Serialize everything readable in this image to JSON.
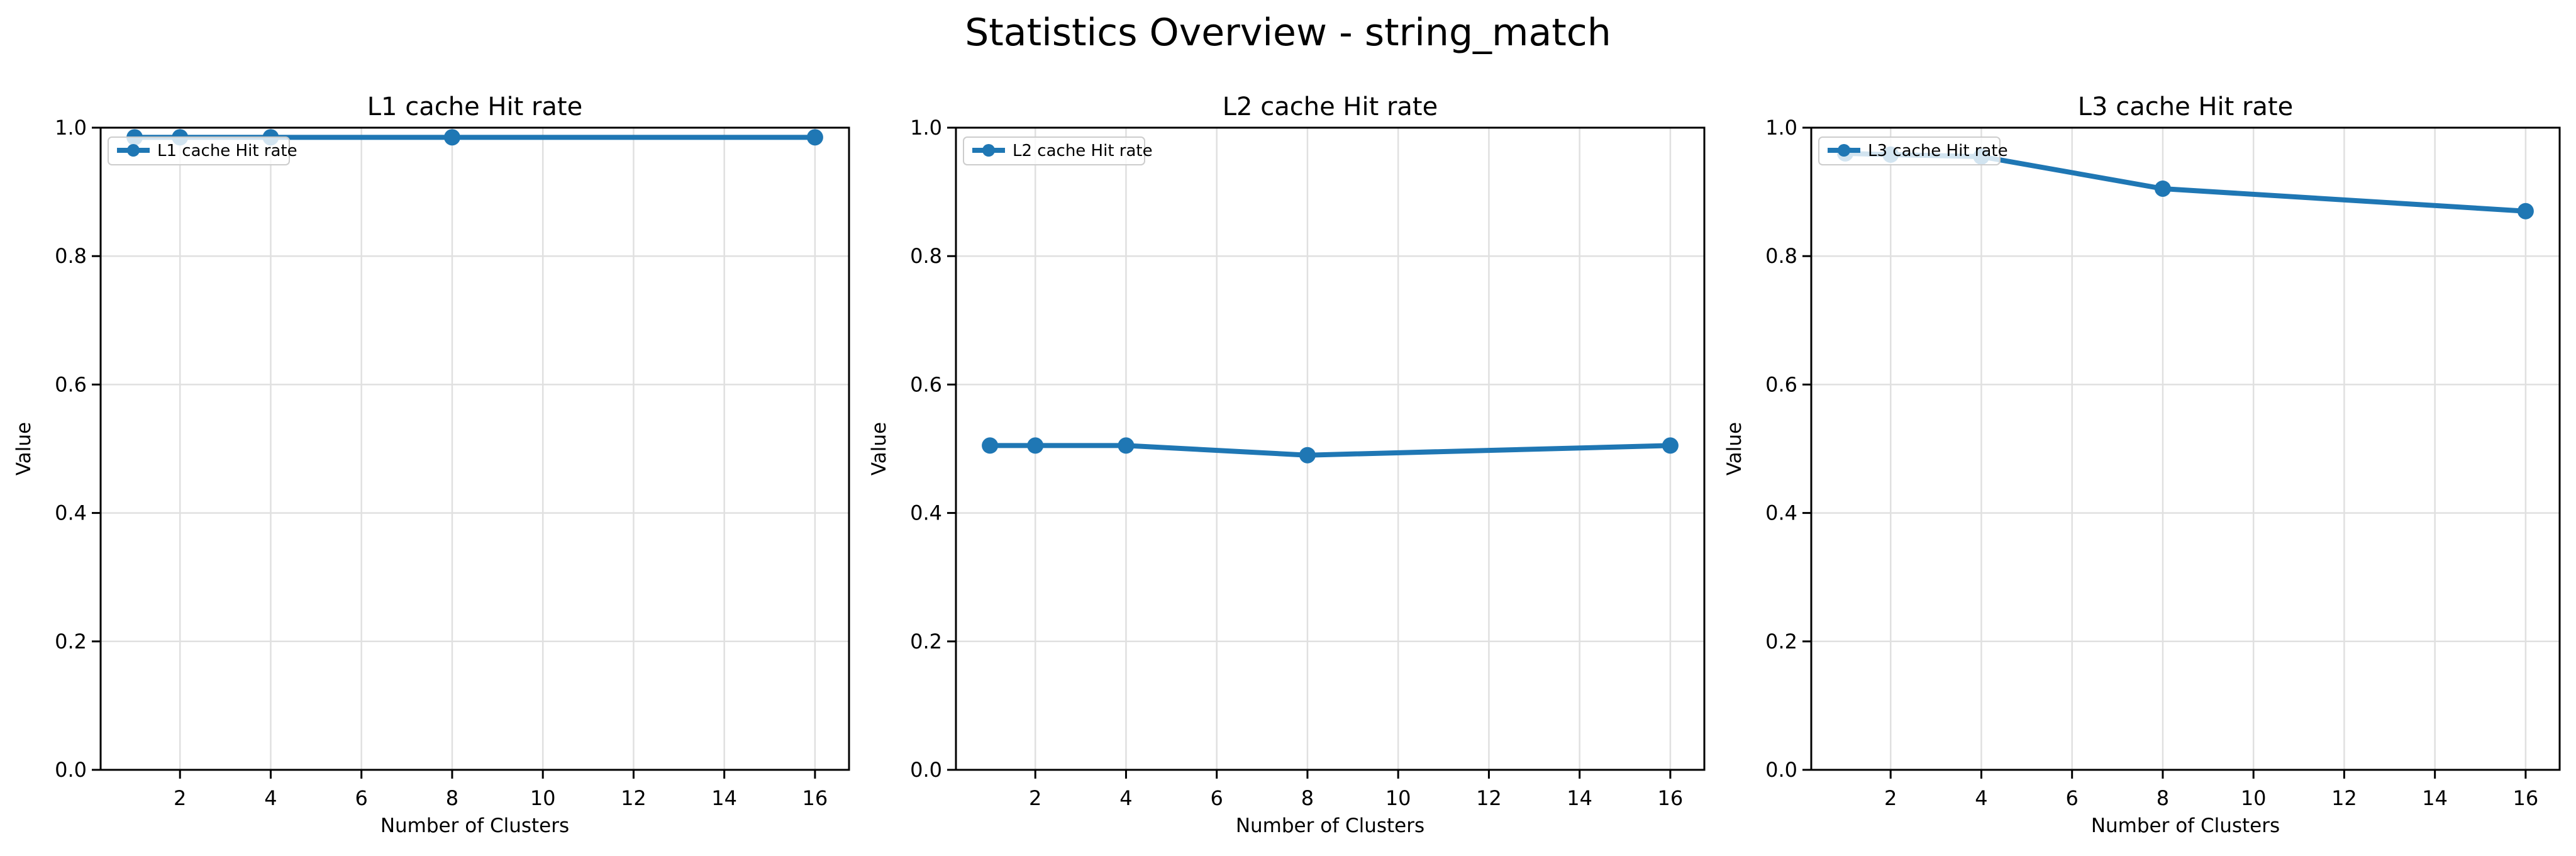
{
  "title": "Statistics Overview - string_match",
  "colors": {
    "line": "#1f77b4",
    "grid": "#e0e0e0",
    "spine": "#000000",
    "legend_border": "#cccccc",
    "legend_bg": "#ffffff"
  },
  "chart_data": [
    {
      "type": "line",
      "title": "L1 cache Hit rate",
      "xlabel": "Number of Clusters",
      "ylabel": "Value",
      "x": [
        1,
        2,
        4,
        8,
        16
      ],
      "series": [
        {
          "name": "L1 cache Hit rate",
          "values": [
            0.985,
            0.985,
            0.985,
            0.985,
            0.985
          ]
        }
      ],
      "xlim": [
        0.25,
        16.75
      ],
      "ylim": [
        0.0,
        1.0
      ],
      "xticks": [
        2,
        4,
        6,
        8,
        10,
        12,
        14,
        16
      ],
      "yticks": [
        0.0,
        0.2,
        0.4,
        0.6,
        0.8,
        1.0
      ],
      "grid": true,
      "legend_position": "upper left"
    },
    {
      "type": "line",
      "title": "L2 cache Hit rate",
      "xlabel": "Number of Clusters",
      "ylabel": "Value",
      "x": [
        1,
        2,
        4,
        8,
        16
      ],
      "series": [
        {
          "name": "L2 cache Hit rate",
          "values": [
            0.505,
            0.505,
            0.505,
            0.49,
            0.505
          ]
        }
      ],
      "xlim": [
        0.25,
        16.75
      ],
      "ylim": [
        0.0,
        1.0
      ],
      "xticks": [
        2,
        4,
        6,
        8,
        10,
        12,
        14,
        16
      ],
      "yticks": [
        0.0,
        0.2,
        0.4,
        0.6,
        0.8,
        1.0
      ],
      "grid": true,
      "legend_position": "upper left"
    },
    {
      "type": "line",
      "title": "L3 cache Hit rate",
      "xlabel": "Number of Clusters",
      "ylabel": "Value",
      "x": [
        1,
        2,
        4,
        8,
        16
      ],
      "series": [
        {
          "name": "L3 cache Hit rate",
          "values": [
            0.96,
            0.958,
            0.955,
            0.905,
            0.87
          ]
        }
      ],
      "xlim": [
        0.25,
        16.75
      ],
      "ylim": [
        0.0,
        1.0
      ],
      "xticks": [
        2,
        4,
        6,
        8,
        10,
        12,
        14,
        16
      ],
      "yticks": [
        0.0,
        0.2,
        0.4,
        0.6,
        0.8,
        1.0
      ],
      "grid": true,
      "legend_position": "upper left"
    }
  ]
}
